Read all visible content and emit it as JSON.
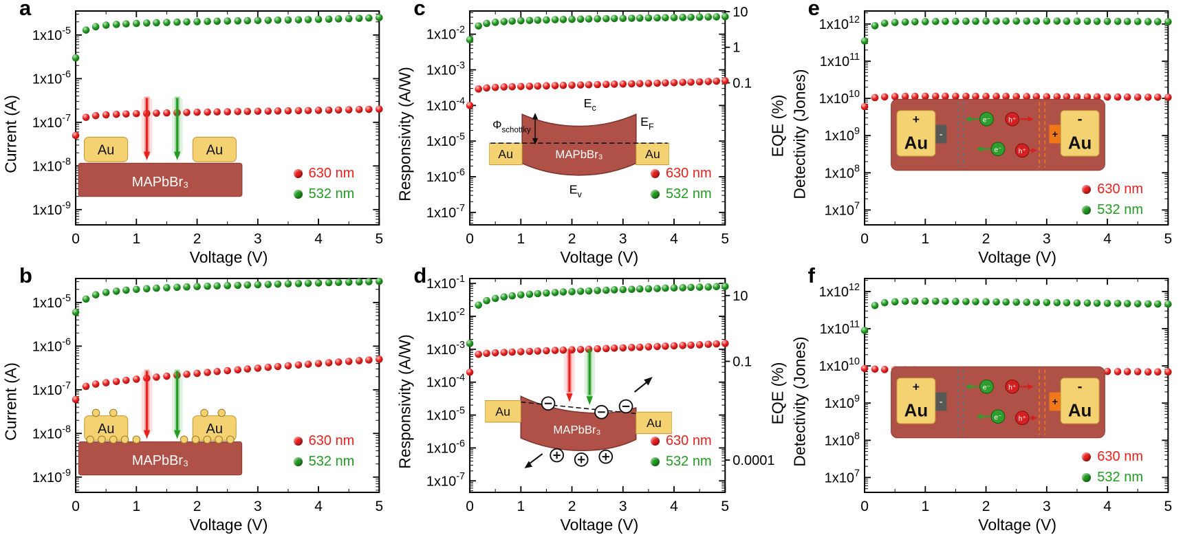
{
  "figure": {
    "background": "#ffffff"
  },
  "colors": {
    "red_series": "#e8211f",
    "green_series": "#219b21",
    "gold": "#f4d271",
    "gold_edge": "#c2993a",
    "perovskite": "#b05148",
    "perovskite_edge": "#8c3c34",
    "electron": "#2f9e2f",
    "hole": "#d42020",
    "orange": "#f07818",
    "gray_layer": "#575757"
  },
  "insets": {
    "device": {
      "au_left": "Au",
      "au_right": "Au",
      "material": "MAPbBr₃"
    },
    "band": {
      "au_left": "Au",
      "au_right": "Au",
      "material": "MAPbBr₃",
      "phi": "Φ",
      "phi_sub": "schottky",
      "e": "E",
      "c_sub": "c",
      "f_sub": "F",
      "v_sub": "v"
    },
    "band_tilted": {
      "au_left": "Au",
      "au_right": "Au",
      "material": "MAPbBr₃"
    },
    "carriers": {
      "au_left": "Au",
      "au_right": "Au",
      "plus": "+",
      "minus": "-",
      "electron": "e⁻",
      "hole": "h⁺"
    }
  },
  "chart_data": [
    {
      "id": "a",
      "panel_label": "a",
      "type": "scatter",
      "y_scale": "log",
      "xlabel": "Voltage (V)",
      "ylabel": "Current (A)",
      "x_range": [
        0,
        5
      ],
      "x_ticks": [
        0,
        1,
        2,
        3,
        4,
        5
      ],
      "y_tick_exponents": [
        -9,
        -8,
        -7,
        -6,
        -5
      ],
      "y_range_exponents": [
        -9.35,
        -4.45
      ],
      "x": [
        0,
        0.17,
        0.33,
        0.5,
        0.67,
        0.83,
        1,
        1.17,
        1.33,
        1.5,
        1.67,
        1.83,
        2,
        2.17,
        2.33,
        2.5,
        2.67,
        2.83,
        3,
        3.17,
        3.33,
        3.5,
        3.67,
        3.83,
        4,
        4.17,
        4.33,
        4.5,
        4.67,
        4.83,
        5
      ],
      "series": [
        {
          "name": "630 nm",
          "color": "#e8211f",
          "values": [
            5e-08,
            1.3e-07,
            1.42e-07,
            1.48e-07,
            1.52e-07,
            1.55e-07,
            1.58e-07,
            1.6e-07,
            1.62e-07,
            1.64e-07,
            1.66e-07,
            1.68e-07,
            1.7e-07,
            1.71e-07,
            1.73e-07,
            1.74e-07,
            1.76e-07,
            1.77e-07,
            1.79e-07,
            1.8e-07,
            1.82e-07,
            1.83e-07,
            1.85e-07,
            1.86e-07,
            1.88e-07,
            1.9e-07,
            1.92e-07,
            1.94e-07,
            1.96e-07,
            1.98e-07,
            2e-07
          ]
        },
        {
          "name": "532 nm",
          "color": "#219b21",
          "values": [
            3e-06,
            1.3e-05,
            1.55e-05,
            1.68e-05,
            1.75e-05,
            1.8e-05,
            1.84e-05,
            1.88e-05,
            1.91e-05,
            1.94e-05,
            1.97e-05,
            2e-05,
            2.02e-05,
            2.05e-05,
            2.07e-05,
            2.09e-05,
            2.11e-05,
            2.13e-05,
            2.15e-05,
            2.17e-05,
            2.19e-05,
            2.21e-05,
            2.23e-05,
            2.25e-05,
            2.28e-05,
            2.31e-05,
            2.34e-05,
            2.37e-05,
            2.41e-05,
            2.45e-05,
            2.5e-05
          ]
        }
      ]
    },
    {
      "id": "b",
      "panel_label": "b",
      "type": "scatter",
      "y_scale": "log",
      "xlabel": "Voltage (V)",
      "ylabel": "Current (A)",
      "x_range": [
        0,
        5
      ],
      "x_ticks": [
        0,
        1,
        2,
        3,
        4,
        5
      ],
      "y_tick_exponents": [
        -9,
        -8,
        -7,
        -6,
        -5
      ],
      "y_range_exponents": [
        -9.35,
        -4.45
      ],
      "x": [
        0,
        0.17,
        0.33,
        0.5,
        0.67,
        0.83,
        1,
        1.17,
        1.33,
        1.5,
        1.67,
        1.83,
        2,
        2.17,
        2.33,
        2.5,
        2.67,
        2.83,
        3,
        3.17,
        3.33,
        3.5,
        3.67,
        3.83,
        4,
        4.17,
        4.33,
        4.5,
        4.67,
        4.83,
        5
      ],
      "series": [
        {
          "name": "630 nm",
          "color": "#e8211f",
          "values": [
            6e-08,
            1.2e-07,
            1.35e-07,
            1.45e-07,
            1.55e-07,
            1.65e-07,
            1.75e-07,
            1.85e-07,
            1.95e-07,
            2.05e-07,
            2.16e-07,
            2.27e-07,
            2.38e-07,
            2.5e-07,
            2.62e-07,
            2.74e-07,
            2.87e-07,
            3e-07,
            3.13e-07,
            3.27e-07,
            3.41e-07,
            3.55e-07,
            3.7e-07,
            3.85e-07,
            4e-07,
            4.16e-07,
            4.32e-07,
            4.48e-07,
            4.65e-07,
            4.82e-07,
            5e-07
          ]
        },
        {
          "name": "532 nm",
          "color": "#219b21",
          "values": [
            6e-06,
            1.2e-05,
            1.5e-05,
            1.7e-05,
            1.82e-05,
            1.92e-05,
            2e-05,
            2.07e-05,
            2.13e-05,
            2.18e-05,
            2.23e-05,
            2.28e-05,
            2.32e-05,
            2.36e-05,
            2.4e-05,
            2.44e-05,
            2.48e-05,
            2.52e-05,
            2.56e-05,
            2.6e-05,
            2.64e-05,
            2.68e-05,
            2.72e-05,
            2.76e-05,
            2.8e-05,
            2.84e-05,
            2.88e-05,
            2.92e-05,
            2.96e-05,
            3e-05,
            3.05e-05
          ]
        }
      ]
    },
    {
      "id": "c",
      "panel_label": "c",
      "type": "scatter",
      "y_scale": "log",
      "xlabel": "Voltage (V)",
      "ylabel": "Responsivity (A/W)",
      "x_range": [
        0,
        5
      ],
      "x_ticks": [
        0,
        1,
        2,
        3,
        4,
        5
      ],
      "y_tick_exponents": [
        -7,
        -6,
        -5,
        -4,
        -3,
        -2
      ],
      "y_range_exponents": [
        -7.35,
        -1.35
      ],
      "right_axis": {
        "label": "EQE (%)",
        "tick_labels": [
          "10",
          "1",
          "0.1"
        ],
        "tick_values": [
          10,
          1,
          0.1
        ],
        "eqe_per_aw": 233
      },
      "x": [
        0,
        0.17,
        0.33,
        0.5,
        0.67,
        0.83,
        1,
        1.17,
        1.33,
        1.5,
        1.67,
        1.83,
        2,
        2.17,
        2.33,
        2.5,
        2.67,
        2.83,
        3,
        3.17,
        3.33,
        3.5,
        3.67,
        3.83,
        4,
        4.17,
        4.33,
        4.5,
        4.67,
        4.83,
        5
      ],
      "series": [
        {
          "name": "630 nm",
          "color": "#e8211f",
          "values": [
            0.0001,
            0.00029,
            0.00031,
            0.00032,
            0.00033,
            0.000335,
            0.00034,
            0.000345,
            0.00035,
            0.000355,
            0.00036,
            0.000365,
            0.00037,
            0.000375,
            0.00038,
            0.000385,
            0.00039,
            0.000395,
            0.0004,
            0.000405,
            0.00041,
            0.000415,
            0.00042,
            0.00043,
            0.000435,
            0.000445,
            0.00045,
            0.00046,
            0.00047,
            0.00048,
            0.00049
          ]
        },
        {
          "name": "532 nm",
          "color": "#219b21",
          "values": [
            0.007,
            0.017,
            0.02,
            0.0215,
            0.0225,
            0.0232,
            0.0238,
            0.0243,
            0.0247,
            0.0251,
            0.0255,
            0.0258,
            0.0261,
            0.0264,
            0.0267,
            0.027,
            0.0272,
            0.0275,
            0.0277,
            0.028,
            0.0282,
            0.0285,
            0.0287,
            0.029,
            0.0292,
            0.0295,
            0.0297,
            0.03,
            0.0303,
            0.0306,
            0.031
          ]
        }
      ]
    },
    {
      "id": "d",
      "panel_label": "d",
      "type": "scatter",
      "y_scale": "log",
      "xlabel": "Voltage (V)",
      "ylabel": "Responsivity (A/W)",
      "x_range": [
        0,
        5
      ],
      "x_ticks": [
        0,
        1,
        2,
        3,
        4,
        5
      ],
      "y_tick_exponents": [
        -7,
        -6,
        -5,
        -4,
        -3,
        -2,
        -1
      ],
      "y_range_exponents": [
        -7.35,
        -0.85
      ],
      "right_axis": {
        "label": "EQE (%)",
        "tick_labels": [
          "10",
          "0.1",
          "0.0001"
        ],
        "tick_values": [
          10,
          0.1,
          0.0001
        ],
        "eqe_per_aw": 233
      },
      "x": [
        0,
        0.17,
        0.33,
        0.5,
        0.67,
        0.83,
        1,
        1.17,
        1.33,
        1.5,
        1.67,
        1.83,
        2,
        2.17,
        2.33,
        2.5,
        2.67,
        2.83,
        3,
        3.17,
        3.33,
        3.5,
        3.67,
        3.83,
        4,
        4.17,
        4.33,
        4.5,
        4.67,
        4.83,
        5
      ],
      "series": [
        {
          "name": "630 nm",
          "color": "#e8211f",
          "values": [
            0.0002,
            0.0007,
            0.00075,
            0.00078,
            0.0008,
            0.00082,
            0.00084,
            0.00086,
            0.00088,
            0.0009,
            0.00092,
            0.00094,
            0.00096,
            0.00098,
            0.001,
            0.00103,
            0.00105,
            0.00108,
            0.0011,
            0.00113,
            0.00115,
            0.00118,
            0.00121,
            0.00124,
            0.00127,
            0.0013,
            0.00133,
            0.00137,
            0.00141,
            0.00145,
            0.0015
          ]
        },
        {
          "name": "532 nm",
          "color": "#219b21",
          "values": [
            0.0015,
            0.022,
            0.03,
            0.035,
            0.039,
            0.042,
            0.045,
            0.047,
            0.049,
            0.051,
            0.053,
            0.055,
            0.056,
            0.058,
            0.059,
            0.061,
            0.062,
            0.064,
            0.065,
            0.066,
            0.068,
            0.069,
            0.07,
            0.072,
            0.073,
            0.074,
            0.076,
            0.077,
            0.078,
            0.08,
            0.081
          ]
        }
      ]
    },
    {
      "id": "e",
      "panel_label": "e",
      "type": "scatter",
      "y_scale": "log",
      "xlabel": "Voltage (V)",
      "ylabel": "Detectivity (Jones)",
      "x_range": [
        0,
        5
      ],
      "x_ticks": [
        0,
        1,
        2,
        3,
        4,
        5
      ],
      "y_tick_exponents": [
        7,
        8,
        9,
        10,
        11,
        12
      ],
      "y_range_exponents": [
        6.6,
        12.35
      ],
      "x": [
        0,
        0.17,
        0.33,
        0.5,
        0.67,
        0.83,
        1,
        1.17,
        1.33,
        1.5,
        1.67,
        1.83,
        2,
        2.17,
        2.33,
        2.5,
        2.67,
        2.83,
        3,
        3.17,
        3.33,
        3.5,
        3.67,
        3.83,
        4,
        4.17,
        4.33,
        4.5,
        4.67,
        4.83,
        5
      ],
      "series": [
        {
          "name": "630 nm",
          "color": "#e8211f",
          "values": [
            6000000000.0,
            10500000000.0,
            11000000000.0,
            11200000000.0,
            11300000000.0,
            11300000000.0,
            11400000000.0,
            11400000000.0,
            11400000000.0,
            11400000000.0,
            11400000000.0,
            11300000000.0,
            11300000000.0,
            11300000000.0,
            11300000000.0,
            11200000000.0,
            11200000000.0,
            11200000000.0,
            11100000000.0,
            11100000000.0,
            11100000000.0,
            11000000000.0,
            11000000000.0,
            11000000000.0,
            10900000000.0,
            10900000000.0,
            10900000000.0,
            10800000000.0,
            10800000000.0,
            10800000000.0,
            10700000000.0
          ]
        },
        {
          "name": "532 nm",
          "color": "#219b21",
          "values": [
            350000000000.0,
            900000000000.0,
            1050000000000.0,
            1100000000000.0,
            1130000000000.0,
            1150000000000.0,
            1160000000000.0,
            1170000000000.0,
            1180000000000.0,
            1180000000000.0,
            1190000000000.0,
            1190000000000.0,
            1200000000000.0,
            1200000000000.0,
            1200000000000.0,
            1200000000000.0,
            1200000000000.0,
            1200000000000.0,
            1200000000000.0,
            1200000000000.0,
            1190000000000.0,
            1190000000000.0,
            1190000000000.0,
            1180000000000.0,
            1180000000000.0,
            1180000000000.0,
            1170000000000.0,
            1170000000000.0,
            1160000000000.0,
            1160000000000.0,
            1150000000000.0
          ]
        }
      ]
    },
    {
      "id": "f",
      "panel_label": "f",
      "type": "scatter",
      "y_scale": "log",
      "xlabel": "Voltage (V)",
      "ylabel": "Detectivity (Jones)",
      "x_range": [
        0,
        5
      ],
      "x_ticks": [
        0,
        1,
        2,
        3,
        4,
        5
      ],
      "y_tick_exponents": [
        7,
        8,
        9,
        10,
        11,
        12
      ],
      "y_range_exponents": [
        6.6,
        12.35
      ],
      "x": [
        0,
        0.17,
        0.33,
        0.5,
        0.67,
        0.83,
        1,
        1.17,
        1.33,
        1.5,
        1.67,
        1.83,
        2,
        2.17,
        2.33,
        2.5,
        2.67,
        2.83,
        3,
        3.17,
        3.33,
        3.5,
        3.67,
        3.83,
        4,
        4.17,
        4.33,
        4.5,
        4.67,
        4.83,
        5
      ],
      "series": [
        {
          "name": "630 nm",
          "color": "#e8211f",
          "values": [
            8500000000.0,
            8200000000.0,
            8000000000.0,
            7900000000.0,
            7800000000.0,
            7800000000.0,
            7700000000.0,
            7700000000.0,
            7600000000.0,
            7600000000.0,
            7500000000.0,
            7500000000.0,
            7500000000.0,
            7400000000.0,
            7400000000.0,
            7400000000.0,
            7300000000.0,
            7300000000.0,
            7300000000.0,
            7200000000.0,
            7200000000.0,
            7200000000.0,
            7100000000.0,
            7100000000.0,
            7100000000.0,
            7000000000.0,
            7000000000.0,
            7000000000.0,
            6900000000.0,
            6900000000.0,
            6900000000.0
          ]
        },
        {
          "name": "532 nm",
          "color": "#219b21",
          "values": [
            90000000000.0,
            420000000000.0,
            500000000000.0,
            530000000000.0,
            545000000000.0,
            550000000000.0,
            550000000000.0,
            548000000000.0,
            545000000000.0,
            542000000000.0,
            538000000000.0,
            534000000000.0,
            530000000000.0,
            526000000000.0,
            522000000000.0,
            518000000000.0,
            514000000000.0,
            510000000000.0,
            506000000000.0,
            502000000000.0,
            498000000000.0,
            494000000000.0,
            490000000000.0,
            486000000000.0,
            482000000000.0,
            478000000000.0,
            474000000000.0,
            470000000000.0,
            466000000000.0,
            462000000000.0,
            458000000000.0
          ]
        }
      ]
    }
  ]
}
